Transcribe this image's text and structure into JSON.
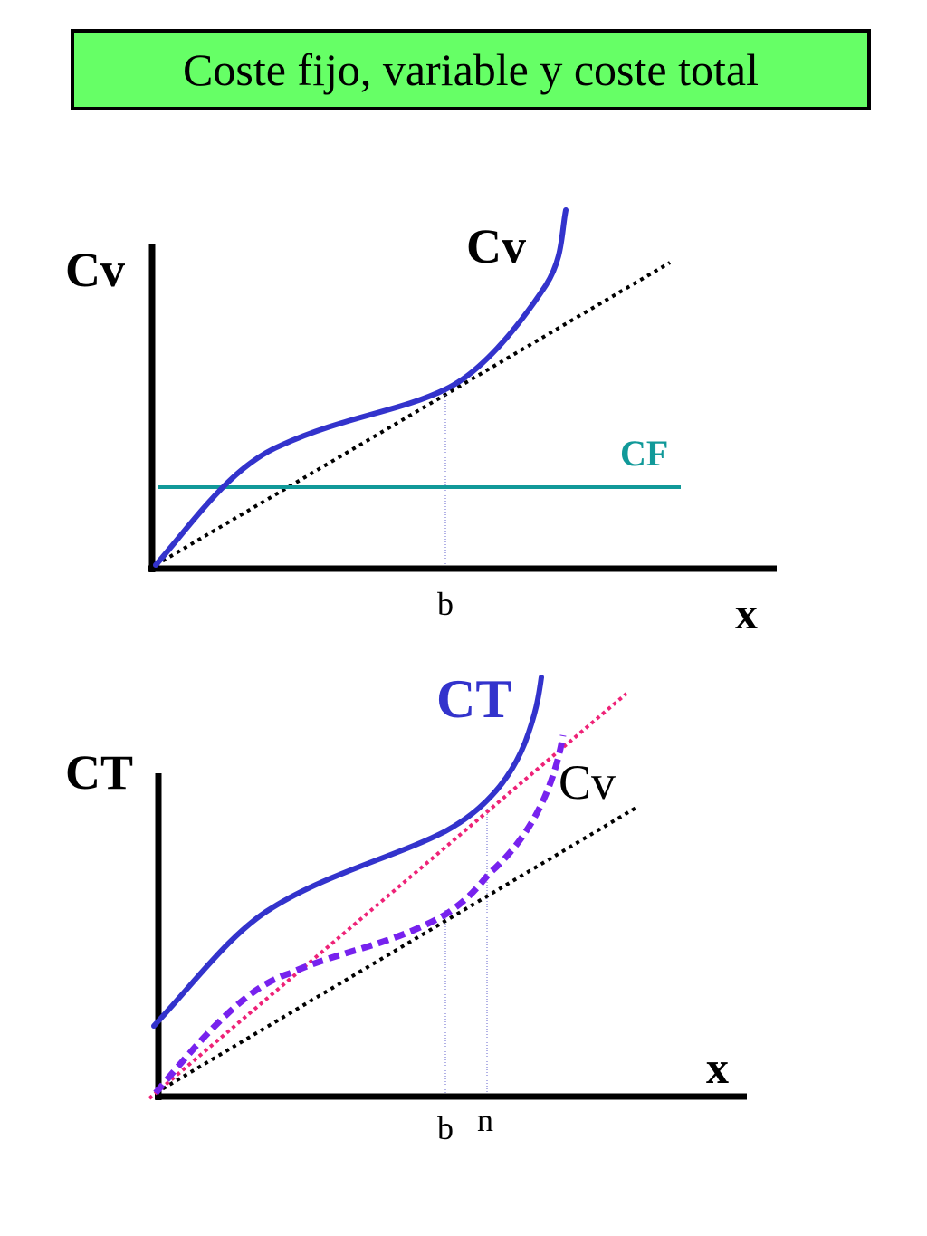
{
  "title": "Coste fijo, variable y coste total",
  "top_diagram": {
    "y_axis_label": "Cv",
    "curve_label": "Cv",
    "fixed_cost_label": "CF",
    "x_axis_label": "x",
    "tick_label": "b"
  },
  "bottom_diagram": {
    "y_axis_label": "CT",
    "total_curve_label": "CT",
    "variable_curve_label": "Cv",
    "x_axis_label": "x",
    "tick_labels": [
      "b",
      "n"
    ]
  },
  "colors": {
    "title_background": "#66ff66",
    "curve_blue": "#3333cc",
    "fixed_cost_teal": "#119999",
    "variable_dashed_purple": "#7722ee",
    "tangent_pink": "#ee2277",
    "tangent_black": "#000000"
  }
}
